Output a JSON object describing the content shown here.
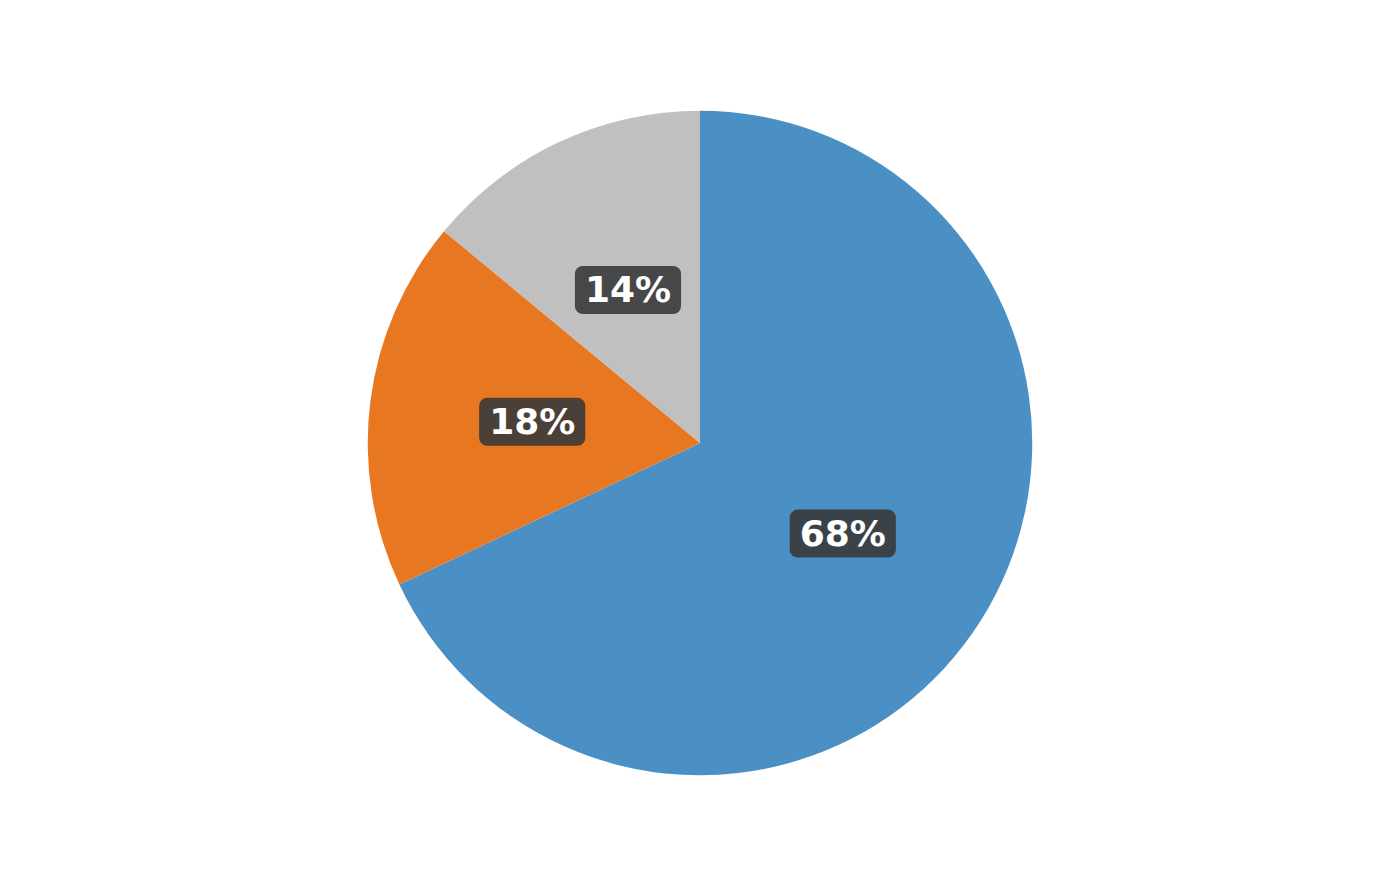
{
  "chart_data": {
    "type": "pie",
    "values": [
      68,
      18,
      14
    ],
    "value_labels": [
      "68%",
      "18%",
      "14%"
    ],
    "colors": [
      "#4a90c4",
      "#e87722",
      "#c0c0c0"
    ],
    "data_labels": true
  }
}
